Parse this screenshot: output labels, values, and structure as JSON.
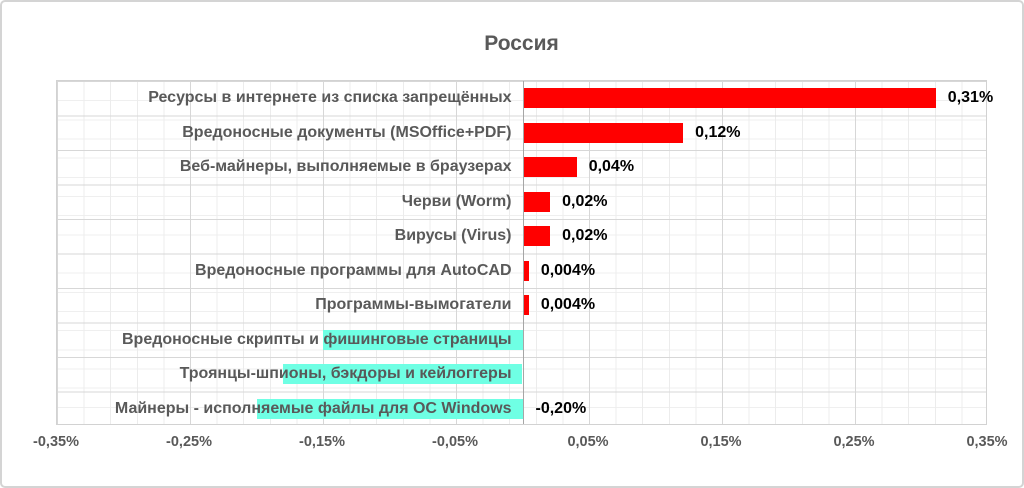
{
  "title": "Россия",
  "colors": {
    "positive_bar": "#FF0000",
    "negative_bar": "#6FFFE4",
    "label_text": "#595959",
    "value_text": "#000000"
  },
  "chart_data": {
    "type": "bar",
    "orientation": "horizontal",
    "title": "Россия",
    "unit": "%",
    "xlim": [
      -0.35,
      0.35
    ],
    "grid": true,
    "legend": false,
    "categories": [
      "Ресурсы в интернете из списка запрещённых",
      "Вредоносные документы (MSOffice+PDF)",
      "Веб-майнеры, выполняемые в браузерах",
      "Черви (Worm)",
      "Вирусы (Virus)",
      "Вредоносные программы для AutoCAD",
      "Программы-вымогатели",
      "Вредоносные скрипты и фишинговые страницы",
      "Троянцы-шпионы, бэкдоры и кейлоггеры",
      "Майнеры - исполняемые файлы для ОС Windows"
    ],
    "values": [
      0.31,
      0.12,
      0.04,
      0.02,
      0.02,
      0.004,
      0.004,
      -0.15,
      -0.18,
      -0.2
    ],
    "data_labels": [
      "0,31%",
      "0,12%",
      "0,04%",
      "0,02%",
      "0,02%",
      "0,004%",
      "0,004%",
      "",
      "",
      "-0,20%"
    ],
    "x_ticks": [
      {
        "label": "-0,35%",
        "value": -0.35
      },
      {
        "label": "-0,25%",
        "value": -0.25
      },
      {
        "label": "-0,15%",
        "value": -0.15
      },
      {
        "label": "-0,05%",
        "value": -0.05
      },
      {
        "label": "0,05%",
        "value": 0.05
      },
      {
        "label": "0,15%",
        "value": 0.15
      },
      {
        "label": "0,25%",
        "value": 0.25
      },
      {
        "label": "0,35%",
        "value": 0.35
      }
    ]
  }
}
